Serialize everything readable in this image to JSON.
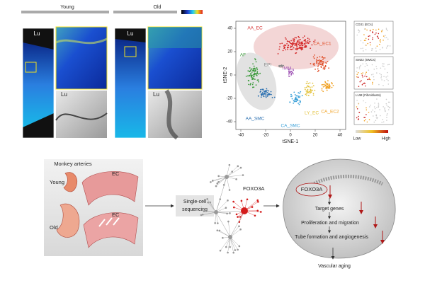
{
  "top_left": {
    "young": {
      "title": "Young",
      "lu_labels": [
        "Lu",
        "Lu"
      ]
    },
    "old": {
      "title": "Old",
      "lu_labels": [
        "Lu",
        "Lu"
      ]
    }
  },
  "tsne": {
    "x_label": "tSNE-1",
    "y_label": "tSNE-2",
    "xticks": [
      -40,
      -20,
      0,
      20,
      40
    ],
    "yticks": [
      -40,
      -20,
      0,
      20,
      40
    ],
    "clusters": [
      "AA_EC",
      "CA_EC1",
      "AF",
      "EPI",
      "IMM",
      "LY_EC",
      "CA_EC2",
      "AA_SMC",
      "CA_SMC"
    ]
  },
  "feature_panels": {
    "titles": [
      "CD31 (ECs)",
      "SM22 (SMCs)",
      "LUM (Fibroblasts)"
    ],
    "low": "Low",
    "high": "High"
  },
  "bottom": {
    "monkey_arteries": "Monkey arteries",
    "young": "Young",
    "old": "Old",
    "ec_labels": [
      "EC",
      "EC"
    ],
    "sequencing": [
      "Single-cell",
      "sequencing"
    ],
    "network_gene": "FOXO3A",
    "cell": {
      "gene": "FOXO3A",
      "steps": [
        "Target genes",
        "Proliferation and migration",
        "Tube formation and angiogenesis"
      ]
    },
    "outcome": "Vascular aging"
  }
}
